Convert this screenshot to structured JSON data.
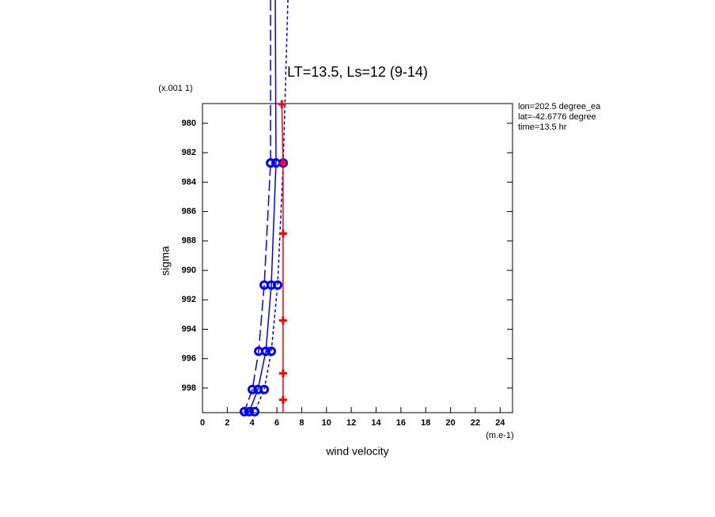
{
  "chart_data": {
    "type": "profile",
    "title": "LT=13.5, Ls=12 (9-14)",
    "y_label": "sigma",
    "y_unit_label": "(x.001 1)",
    "x_label": "wind velocity",
    "x_unit_label": "(m.e-1)",
    "annotations": [
      "lon=202.5 degree_ea",
      "lat=-42.6776 degree",
      "time=13.5 hr"
    ],
    "xlim": [
      0,
      25
    ],
    "xticks": [
      0,
      2,
      4,
      6,
      8,
      10,
      12,
      14,
      16,
      18,
      20,
      22,
      24
    ],
    "ylim": [
      978.66,
      999.67
    ],
    "y_inverted": true,
    "yticks": [
      980,
      982,
      984,
      986,
      988,
      990,
      992,
      994,
      996,
      998
    ],
    "series": [
      {
        "color": "#0000ff",
        "dash": "long",
        "marker": "circle",
        "sigma": [
          971.6,
          982.7,
          991.0,
          995.5,
          998.1,
          999.6
        ],
        "values": [
          5.49,
          5.49,
          4.98,
          4.53,
          4.02,
          3.38
        ]
      },
      {
        "color": "#0000ff",
        "dash": "solid",
        "marker": "circle",
        "sigma": [
          971.6,
          982.7,
          991.0,
          995.5,
          998.1,
          999.6
        ],
        "values": [
          5.87,
          5.93,
          5.55,
          5.11,
          4.47,
          3.77
        ]
      },
      {
        "color": "#0000ff",
        "dash": "short",
        "marker": "circle",
        "sigma": [
          971.6,
          982.7,
          991.0,
          995.5,
          998.1,
          999.6
        ],
        "values": [
          6.89,
          6.51,
          6.06,
          5.55,
          4.98,
          4.21
        ]
      },
      {
        "color": "#ff0000",
        "dash": "solid",
        "marker": "plus",
        "sigma": [
          978.7,
          982.7,
          987.5,
          993.4,
          997.0,
          998.8,
          999.7
        ],
        "values": [
          6.4,
          6.5,
          6.5,
          6.5,
          6.5,
          6.5,
          6.5
        ]
      }
    ]
  }
}
